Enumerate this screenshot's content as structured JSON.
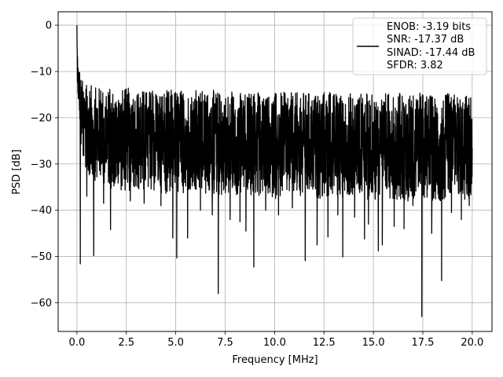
{
  "chart_data": {
    "type": "line",
    "title": "",
    "xlabel": "Frequency [MHz]",
    "ylabel": "PSD [dB]",
    "xlim": [
      -0.95,
      21.0
    ],
    "ylim": [
      -66.2,
      2.9
    ],
    "xticks": [
      0.0,
      2.5,
      5.0,
      7.5,
      10.0,
      12.5,
      15.0,
      17.5,
      20.0
    ],
    "xtick_labels": [
      "0.0",
      "2.5",
      "5.0",
      "7.5",
      "10.0",
      "12.5",
      "15.0",
      "17.5",
      "20.0"
    ],
    "yticks": [
      0,
      -10,
      -20,
      -30,
      -40,
      -50,
      -60
    ],
    "ytick_labels": [
      "0",
      "−10",
      "−20",
      "−30",
      "−40",
      "−50",
      "−60"
    ],
    "grid": true,
    "legend_position": "top-right",
    "legend_entries": [
      "ENOB: -3.19 bits",
      "SNR: -17.37 dB",
      "SINAD: -17.44 dB",
      "SFDR: 3.82"
    ],
    "series": [
      {
        "color": "#000000",
        "x": [
          0.0,
          0.02,
          0.05,
          0.08,
          0.1,
          0.13,
          0.17,
          0.2,
          0.25,
          0.3,
          0.4,
          0.5,
          0.6,
          0.75,
          0.9,
          1.0,
          1.2,
          1.4,
          1.6,
          1.8,
          2.0,
          2.5,
          3.0,
          3.5,
          4.0,
          4.5,
          5.0,
          5.5,
          6.0,
          6.5,
          7.0,
          7.5,
          8.0,
          8.5,
          9.0,
          9.5,
          10.0,
          10.5,
          11.0,
          11.5,
          12.0,
          12.5,
          13.0,
          13.5,
          14.0,
          14.5,
          15.0,
          15.5,
          16.0,
          16.5,
          17.0,
          17.5,
          18.0,
          18.5,
          19.0,
          19.5,
          20.0
        ],
        "upper": [
          0.0,
          -4.0,
          -6.5,
          -9.0,
          -8.5,
          -9.0,
          -10.0,
          -11.0,
          -11.5,
          -12.0,
          -12.5,
          -12.5,
          -13.0,
          -13.0,
          -13.0,
          -13.0,
          -13.5,
          -13.5,
          -13.5,
          -13.5,
          -14.0,
          -13.5,
          -13.5,
          -14.0,
          -13.5,
          -14.0,
          -13.5,
          -14.0,
          -14.0,
          -14.0,
          -14.0,
          -14.5,
          -14.0,
          -14.5,
          -14.0,
          -14.5,
          -14.5,
          -14.5,
          -14.5,
          -14.5,
          -14.5,
          -14.0,
          -14.5,
          -14.5,
          -14.5,
          -14.5,
          -15.0,
          -14.5,
          -14.5,
          -14.5,
          -14.5,
          -14.5,
          -15.0,
          -15.0,
          -14.5,
          -15.0,
          -15.0
        ],
        "lower": [
          -8.0,
          -12.0,
          -15.0,
          -18.0,
          -18.5,
          -20.0,
          -24.0,
          -27.0,
          -28.0,
          -29.5,
          -31.0,
          -32.0,
          -33.0,
          -33.0,
          -33.5,
          -34.0,
          -34.0,
          -34.5,
          -35.0,
          -35.5,
          -35.5,
          -36.0,
          -36.0,
          -36.0,
          -36.0,
          -36.5,
          -36.5,
          -36.5,
          -36.5,
          -37.0,
          -37.0,
          -37.0,
          -37.0,
          -37.0,
          -37.5,
          -37.0,
          -37.5,
          -37.5,
          -37.0,
          -37.5,
          -37.5,
          -37.5,
          -37.5,
          -37.5,
          -37.5,
          -37.5,
          -38.0,
          -37.5,
          -37.5,
          -38.0,
          -38.0,
          -37.5,
          -38.0,
          -38.0,
          -38.0,
          -38.0,
          -38.0
        ],
        "dips": [
          [
            0.17,
            -51.6
          ],
          [
            0.5,
            -37.0
          ],
          [
            0.85,
            -49.8
          ],
          [
            1.35,
            -38.5
          ],
          [
            1.7,
            -44.2
          ],
          [
            2.7,
            -38.0
          ],
          [
            3.4,
            -38.5
          ],
          [
            4.25,
            -39.0
          ],
          [
            4.85,
            -46.0
          ],
          [
            5.05,
            -50.3
          ],
          [
            5.6,
            -46.0
          ],
          [
            6.25,
            -40.0
          ],
          [
            6.85,
            -41.0
          ],
          [
            7.15,
            -58.0
          ],
          [
            7.75,
            -42.0
          ],
          [
            8.25,
            -42.5
          ],
          [
            8.55,
            -44.5
          ],
          [
            8.95,
            -52.3
          ],
          [
            9.55,
            -40.0
          ],
          [
            10.2,
            -41.0
          ],
          [
            10.9,
            -39.5
          ],
          [
            11.55,
            -50.9
          ],
          [
            12.15,
            -47.5
          ],
          [
            12.7,
            -45.8
          ],
          [
            13.2,
            -41.0
          ],
          [
            13.45,
            -50.1
          ],
          [
            14.05,
            -41.5
          ],
          [
            14.55,
            -46.2
          ],
          [
            14.75,
            -43.0
          ],
          [
            15.25,
            -48.8
          ],
          [
            15.45,
            -47.5
          ],
          [
            16.05,
            -43.5
          ],
          [
            16.55,
            -44.0
          ],
          [
            17.0,
            -39.0
          ],
          [
            17.45,
            -63.0
          ],
          [
            17.95,
            -45.0
          ],
          [
            18.45,
            -55.2
          ],
          [
            18.95,
            -40.5
          ],
          [
            19.45,
            -42.0
          ],
          [
            19.85,
            -39.0
          ]
        ]
      }
    ]
  }
}
